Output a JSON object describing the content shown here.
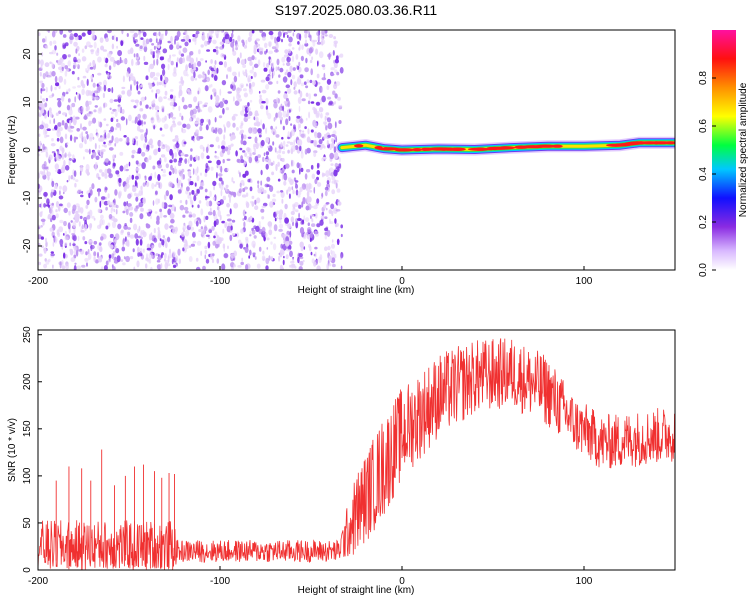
{
  "title": "S197.2025.080.03.36.R11",
  "colors": {
    "snr_line": "#f03030",
    "scatter_light": "#e6d2fa",
    "scatter_mid": "#b98cf0",
    "scatter_dark": "#7a2ee6",
    "spectrogram_background": "#ffffff"
  },
  "chart_data": [
    {
      "type": "heatmap",
      "title": "S197.2025.080.03.36.R11",
      "xlabel": "Height of straight line (km)",
      "ylabel": "Frequency (Hz)",
      "xlim": [
        -200,
        150
      ],
      "ylim": [
        -25,
        25
      ],
      "xticks": [
        "-200",
        "-100",
        "0",
        "100"
      ],
      "yticks": [
        "-20",
        "-10",
        "0",
        "10",
        "20"
      ],
      "noise_region_x": [
        -200,
        -33
      ],
      "signal_track": [
        {
          "x": -33,
          "freq": 0.5
        },
        {
          "x": -20,
          "freq": 1.0
        },
        {
          "x": -10,
          "freq": 0.3
        },
        {
          "x": 0,
          "freq": 0.0
        },
        {
          "x": 20,
          "freq": 0.2
        },
        {
          "x": 40,
          "freq": 0.1
        },
        {
          "x": 60,
          "freq": 0.5
        },
        {
          "x": 80,
          "freq": 0.8
        },
        {
          "x": 100,
          "freq": 0.8
        },
        {
          "x": 120,
          "freq": 1.0
        },
        {
          "x": 130,
          "freq": 1.5
        },
        {
          "x": 150,
          "freq": 1.5
        }
      ],
      "colorbar": {
        "label": "Normalized spectral amplitude",
        "range": [
          0.0,
          1.0
        ],
        "ticks": [
          "0.0",
          "0.2",
          "0.4",
          "0.6",
          "0.8"
        ],
        "colormap": "rainbow (white, violet, blue, cyan, green, yellow, orange, red, magenta)"
      }
    },
    {
      "type": "line",
      "xlabel": "Height of straight line (km)",
      "ylabel": "SNR (10 * v/v)",
      "xlim": [
        -200,
        150
      ],
      "ylim": [
        0,
        255
      ],
      "xticks": [
        "-200",
        "-100",
        "0",
        "100"
      ],
      "yticks": [
        "0",
        "50",
        "100",
        "150",
        "200",
        "250"
      ],
      "grid": false,
      "envelope": [
        {
          "x": -200,
          "mean": 25,
          "spread": 28
        },
        {
          "x": -125,
          "mean": 25,
          "spread": 28
        },
        {
          "x": -124,
          "mean": 20,
          "spread": 12
        },
        {
          "x": -35,
          "mean": 20,
          "spread": 12
        },
        {
          "x": -25,
          "mean": 60,
          "spread": 45
        },
        {
          "x": -10,
          "mean": 110,
          "spread": 55
        },
        {
          "x": 0,
          "mean": 145,
          "spread": 50
        },
        {
          "x": 20,
          "mean": 185,
          "spread": 45
        },
        {
          "x": 40,
          "mean": 205,
          "spread": 40
        },
        {
          "x": 60,
          "mean": 210,
          "spread": 38
        },
        {
          "x": 80,
          "mean": 190,
          "spread": 38
        },
        {
          "x": 95,
          "mean": 155,
          "spread": 30
        },
        {
          "x": 110,
          "mean": 135,
          "spread": 30
        },
        {
          "x": 130,
          "mean": 140,
          "spread": 30
        },
        {
          "x": 150,
          "mean": 145,
          "spread": 30
        }
      ],
      "spikes": [
        {
          "x": -190,
          "y": 95
        },
        {
          "x": -183,
          "y": 110
        },
        {
          "x": -176,
          "y": 108
        },
        {
          "x": -171,
          "y": 95
        },
        {
          "x": -165,
          "y": 128
        },
        {
          "x": -158,
          "y": 90
        },
        {
          "x": -152,
          "y": 100
        },
        {
          "x": -147,
          "y": 110
        },
        {
          "x": -142,
          "y": 112
        },
        {
          "x": -136,
          "y": 105
        },
        {
          "x": -132,
          "y": 98
        },
        {
          "x": -128,
          "y": 103
        },
        {
          "x": -125,
          "y": 102
        }
      ]
    }
  ]
}
